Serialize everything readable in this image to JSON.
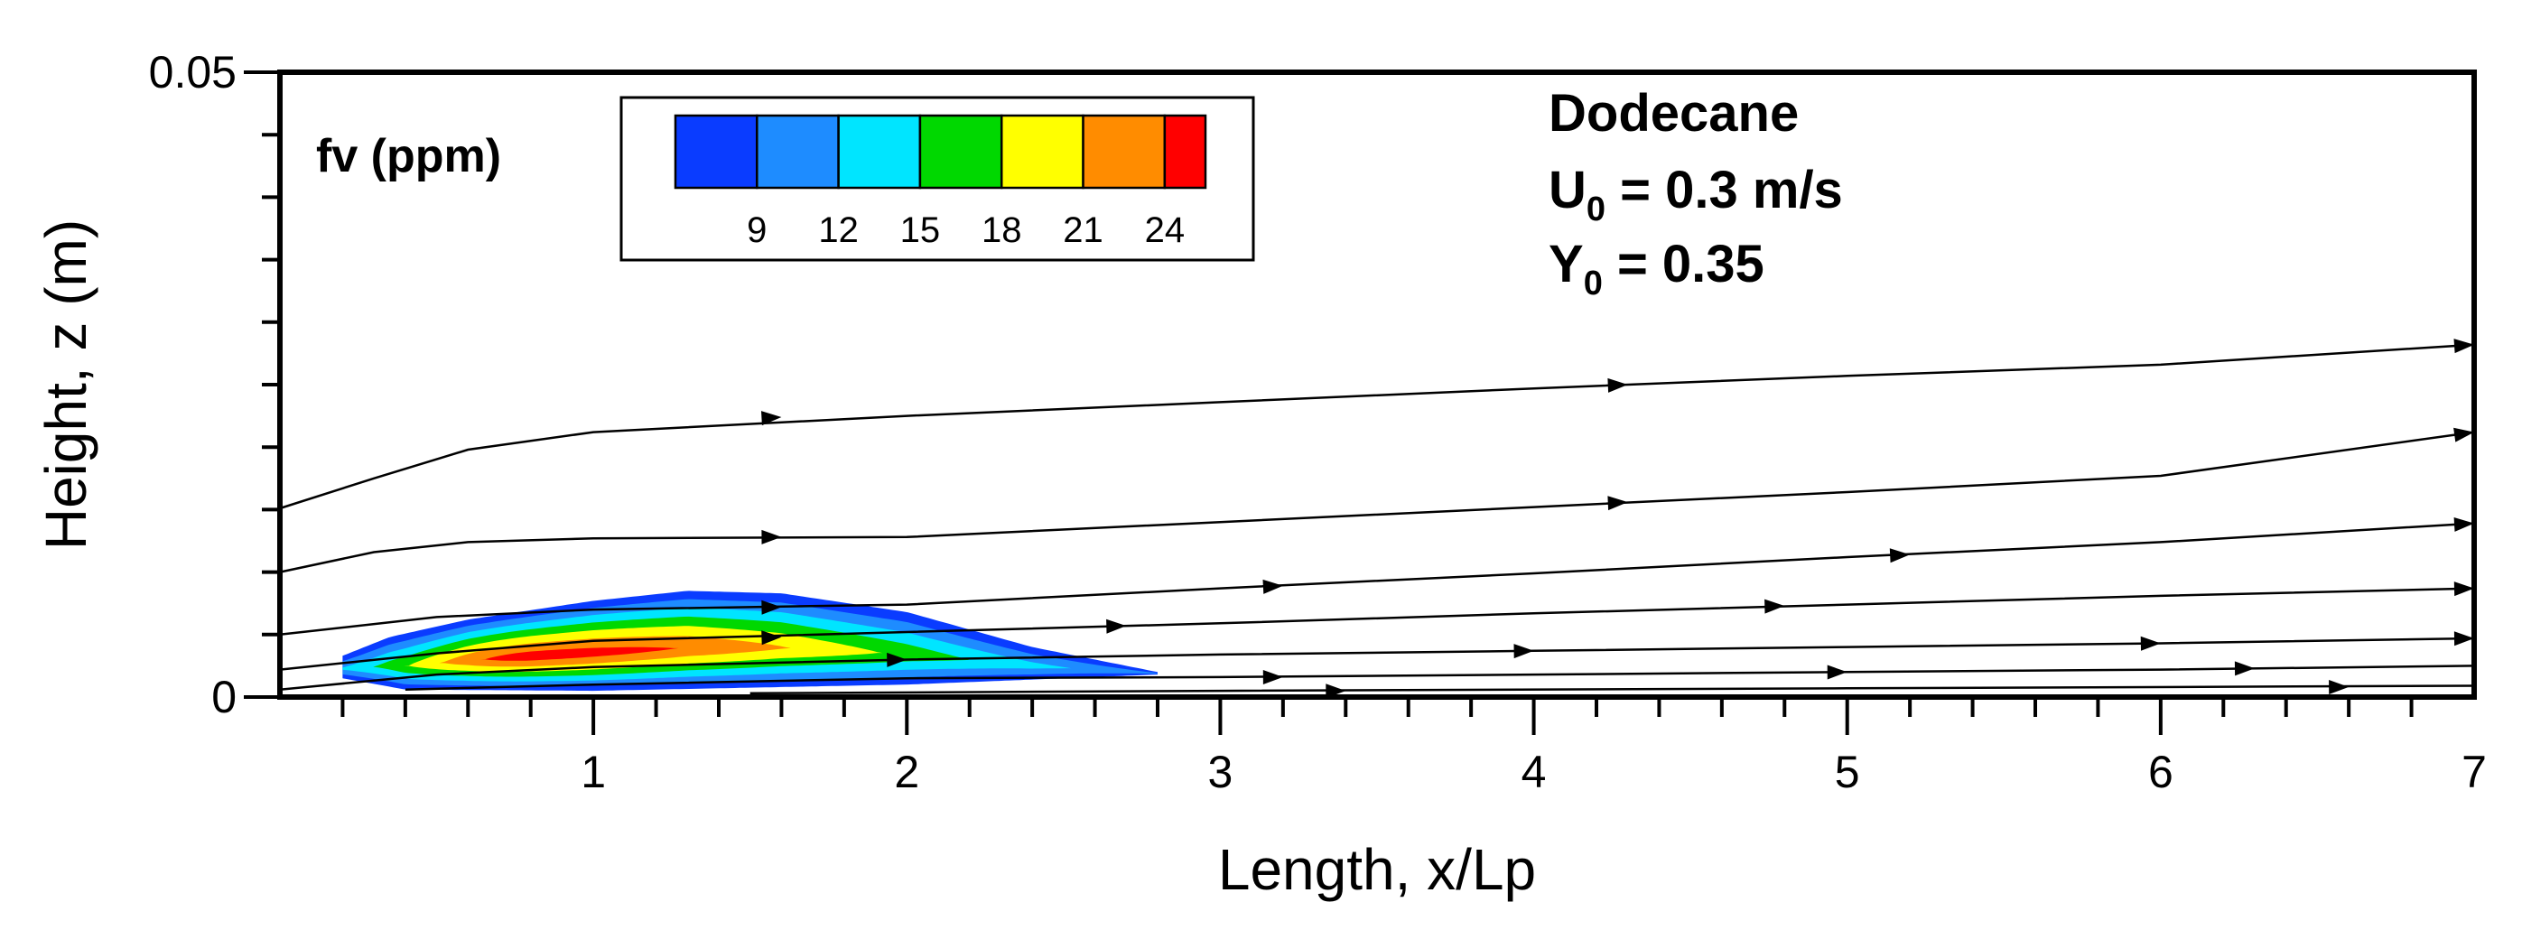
{
  "chart_data": {
    "type": "contour",
    "xlabel": "Length, x/Lp",
    "ylabel": "Height, z (m)",
    "xlim": [
      0,
      7
    ],
    "ylim": [
      0,
      0.05
    ],
    "x_ticks": [
      "1",
      "2",
      "3",
      "4",
      "5",
      "6",
      "7"
    ],
    "y_ticks": [
      "0",
      "0.05"
    ],
    "colorbar": {
      "title": "fv (ppm)",
      "levels": [
        6,
        9,
        12,
        15,
        18,
        21,
        24,
        25.5
      ],
      "tick_labels": [
        "9",
        "12",
        "15",
        "18",
        "21",
        "24"
      ],
      "colors": [
        "#0a3cff",
        "#1e8cff",
        "#00e5ff",
        "#00d800",
        "#ffff00",
        "#ff8c00",
        "#ff0000"
      ]
    },
    "annotations": {
      "fuel": "Dodecane",
      "velocity_main": "U",
      "velocity_sub": "0",
      "velocity_rest": " = 0.3 m/s",
      "mass_main": "Y",
      "mass_sub": "0",
      "mass_rest": " = 0.35"
    },
    "streamlines": [
      [
        [
          0,
          0.0151
        ],
        [
          0.3,
          0.0175
        ],
        [
          0.6,
          0.0198
        ],
        [
          1.0,
          0.0212
        ],
        [
          2.0,
          0.0225
        ],
        [
          3.0,
          0.0236
        ],
        [
          4.0,
          0.0247
        ],
        [
          5.0,
          0.0257
        ],
        [
          6.0,
          0.0266
        ],
        [
          7.0,
          0.0282
        ]
      ],
      [
        [
          0,
          0.01
        ],
        [
          0.3,
          0.0116
        ],
        [
          0.6,
          0.0124
        ],
        [
          1.0,
          0.0127
        ],
        [
          2.0,
          0.0128
        ],
        [
          3.0,
          0.014
        ],
        [
          4.0,
          0.0152
        ],
        [
          5.0,
          0.0164
        ],
        [
          6.0,
          0.0177
        ],
        [
          7.0,
          0.0212
        ]
      ],
      [
        [
          0,
          0.005
        ],
        [
          0.5,
          0.0064
        ],
        [
          1.0,
          0.007
        ],
        [
          2.0,
          0.0074
        ],
        [
          3.0,
          0.0087
        ],
        [
          4.0,
          0.0099
        ],
        [
          5.0,
          0.0112
        ],
        [
          6.0,
          0.0124
        ],
        [
          7.0,
          0.0139
        ]
      ],
      [
        [
          0,
          0.0022
        ],
        [
          0.5,
          0.0035
        ],
        [
          1.0,
          0.0045
        ],
        [
          2.0,
          0.0052
        ],
        [
          3.0,
          0.0059
        ],
        [
          4.0,
          0.0067
        ],
        [
          5.0,
          0.0074
        ],
        [
          6.0,
          0.0081
        ],
        [
          7.0,
          0.0087
        ]
      ],
      [
        [
          0,
          0.0006
        ],
        [
          0.5,
          0.0018
        ],
        [
          1.0,
          0.0024
        ],
        [
          2.0,
          0.003
        ],
        [
          3.0,
          0.0034
        ],
        [
          4.0,
          0.0037
        ],
        [
          5.0,
          0.004
        ],
        [
          6.0,
          0.0043
        ],
        [
          7.0,
          0.0047
        ]
      ],
      [
        [
          0.4,
          0.0006
        ],
        [
          1.0,
          0.001
        ],
        [
          2.0,
          0.0015
        ],
        [
          3.0,
          0.0016
        ],
        [
          4.0,
          0.0018
        ],
        [
          5.0,
          0.002
        ],
        [
          6.0,
          0.0022
        ],
        [
          7.0,
          0.0025
        ]
      ],
      [
        [
          1.5,
          0.0003
        ],
        [
          3.0,
          0.0005
        ],
        [
          5.0,
          0.0007
        ],
        [
          7.0,
          0.0009
        ]
      ]
    ],
    "streamline_arrows": [
      [
        [
          1.6,
          0.0224
        ],
        [
          4.3,
          0.025
        ],
        [
          7.0,
          0.0282
        ]
      ],
      [
        [
          1.6,
          0.0128
        ],
        [
          4.3,
          0.0156
        ],
        [
          7.0,
          0.0212
        ]
      ],
      [
        [
          1.6,
          0.0072
        ],
        [
          3.2,
          0.0089
        ],
        [
          5.2,
          0.0114
        ],
        [
          7.0,
          0.0139
        ]
      ],
      [
        [
          1.6,
          0.0048
        ],
        [
          2.7,
          0.0057
        ],
        [
          4.8,
          0.0073
        ],
        [
          7.0,
          0.0087
        ]
      ],
      [
        [
          2.0,
          0.003
        ],
        [
          4.0,
          0.0037
        ],
        [
          6.0,
          0.0043
        ],
        [
          7.0,
          0.0047
        ]
      ],
      [
        [
          3.2,
          0.0016
        ],
        [
          5.0,
          0.002
        ],
        [
          6.3,
          0.0023
        ]
      ],
      [
        [
          3.4,
          0.0005
        ],
        [
          6.6,
          0.0008
        ]
      ]
    ],
    "soot_region": {
      "x_start": 0.2,
      "max_level": 25.5,
      "max_x": 0.82,
      "outer_contour": {
        "top": [
          [
            0.2,
            0.0033
          ],
          [
            0.35,
            0.0048
          ],
          [
            0.6,
            0.0062
          ],
          [
            1.0,
            0.0077
          ],
          [
            1.3,
            0.0085
          ],
          [
            1.6,
            0.0083
          ],
          [
            2.0,
            0.0068
          ],
          [
            2.4,
            0.004
          ],
          [
            2.8,
            0.002
          ]
        ],
        "bottom": [
          [
            0.2,
            0.0015
          ],
          [
            0.4,
            0.0006
          ],
          [
            1.0,
            0.0005
          ],
          [
            2.0,
            0.001
          ],
          [
            2.8,
            0.0018
          ]
        ]
      }
    }
  }
}
